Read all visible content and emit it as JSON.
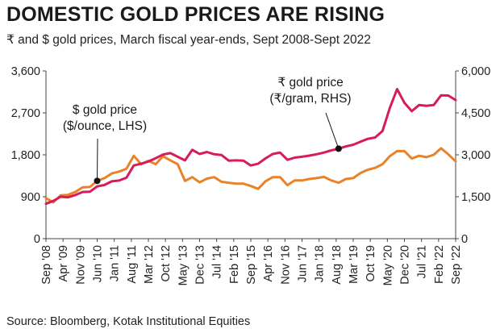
{
  "chart_data": {
    "type": "line",
    "title": "DOMESTIC GOLD PRICES ARE RISING",
    "subtitle": "₹ and $ gold prices, March fiscal year-ends, Sept 2008-Sept 2022",
    "source": "Source: Bloomberg, Kotak Institutional Equities",
    "y_left": {
      "ylim": [
        0,
        3600
      ],
      "ticks": [
        "0",
        "900",
        "1,800",
        "2,700",
        "3,600"
      ],
      "tick_values": [
        0,
        900,
        1800,
        2700,
        3600
      ]
    },
    "y_right": {
      "ylim": [
        0,
        6000
      ],
      "ticks": [
        "0",
        "1,500",
        "3,000",
        "4,500",
        "6,000"
      ],
      "tick_values": [
        0,
        1500,
        3000,
        4500,
        6000
      ]
    },
    "x_ticks": [
      "Sep '08",
      "Apr '09",
      "Nov '09",
      "Jun '10",
      "Jan '11",
      "Aug '11",
      "Mar '12",
      "Oct '12",
      "May '13",
      "Dec '13",
      "Jul '14",
      "Feb '15",
      "Sep '15",
      "Apr '16",
      "Nov '16",
      "Jun '17",
      "Jan '18",
      "Aug '18",
      "Mar '19",
      "Oct '19",
      "May '20",
      "Dec '20",
      "Jul '21",
      "Feb '22",
      "Sep '22"
    ],
    "grid": false,
    "series": [
      {
        "name": "$ gold price ($/ounce, LHS)",
        "axis": "left",
        "color": "#e8832a",
        "x": [
          "2008-09",
          "2008-12",
          "2009-03",
          "2009-06",
          "2009-09",
          "2009-12",
          "2010-03",
          "2010-06",
          "2010-09",
          "2010-12",
          "2011-03",
          "2011-06",
          "2011-09",
          "2011-12",
          "2012-03",
          "2012-06",
          "2012-09",
          "2012-12",
          "2013-03",
          "2013-06",
          "2013-09",
          "2013-12",
          "2014-03",
          "2014-06",
          "2014-09",
          "2014-12",
          "2015-03",
          "2015-06",
          "2015-09",
          "2015-12",
          "2016-03",
          "2016-06",
          "2016-09",
          "2016-12",
          "2017-03",
          "2017-06",
          "2017-09",
          "2017-12",
          "2018-03",
          "2018-06",
          "2018-09",
          "2018-12",
          "2019-03",
          "2019-06",
          "2019-09",
          "2019-12",
          "2020-03",
          "2020-06",
          "2020-09",
          "2020-12",
          "2021-03",
          "2021-06",
          "2021-09",
          "2021-12",
          "2022-03",
          "2022-06",
          "2022-09"
        ],
        "values": [
          870,
          780,
          930,
          940,
          1000,
          1100,
          1110,
          1240,
          1300,
          1400,
          1440,
          1500,
          1780,
          1600,
          1670,
          1600,
          1770,
          1680,
          1600,
          1240,
          1320,
          1210,
          1290,
          1320,
          1220,
          1200,
          1180,
          1180,
          1130,
          1070,
          1230,
          1320,
          1320,
          1150,
          1250,
          1250,
          1280,
          1300,
          1325,
          1250,
          1200,
          1280,
          1300,
          1410,
          1480,
          1520,
          1600,
          1770,
          1880,
          1880,
          1720,
          1780,
          1750,
          1800,
          1940,
          1810,
          1660
        ]
      },
      {
        "name": "₹ gold price (₹/gram, RHS)",
        "axis": "right",
        "color": "#d81b5a",
        "x": [
          "2008-09",
          "2008-12",
          "2009-03",
          "2009-06",
          "2009-09",
          "2009-12",
          "2010-03",
          "2010-06",
          "2010-09",
          "2010-12",
          "2011-03",
          "2011-06",
          "2011-09",
          "2011-12",
          "2012-03",
          "2012-06",
          "2012-09",
          "2012-12",
          "2013-03",
          "2013-06",
          "2013-09",
          "2013-12",
          "2014-03",
          "2014-06",
          "2014-09",
          "2014-12",
          "2015-03",
          "2015-06",
          "2015-09",
          "2015-12",
          "2016-03",
          "2016-06",
          "2016-09",
          "2016-12",
          "2017-03",
          "2017-06",
          "2017-09",
          "2017-12",
          "2018-03",
          "2018-06",
          "2018-09",
          "2018-12",
          "2019-03",
          "2019-06",
          "2019-09",
          "2019-12",
          "2020-03",
          "2020-06",
          "2020-09",
          "2020-12",
          "2021-03",
          "2021-06",
          "2021-09",
          "2021-12",
          "2022-03",
          "2022-06",
          "2022-09"
        ],
        "values": [
          1250,
          1350,
          1500,
          1480,
          1560,
          1670,
          1680,
          1870,
          1920,
          2050,
          2080,
          2180,
          2620,
          2680,
          2760,
          2880,
          3010,
          3060,
          2930,
          2800,
          3180,
          3030,
          3100,
          3020,
          2990,
          2790,
          2800,
          2790,
          2620,
          2680,
          2870,
          3030,
          3080,
          2820,
          2900,
          2930,
          2970,
          3020,
          3080,
          3160,
          3220,
          3300,
          3360,
          3470,
          3570,
          3620,
          3850,
          4680,
          5350,
          4860,
          4560,
          4780,
          4750,
          4780,
          5130,
          5120,
          4960
        ]
      }
    ],
    "annotations": [
      {
        "lines": [
          "$ gold price",
          "($/ounce, LHS)"
        ],
        "point_series": 0,
        "point_x": "2010-06"
      },
      {
        "lines": [
          "₹ gold price",
          "(₹/gram, RHS)"
        ],
        "point_series": 1,
        "point_x": "2018-09"
      }
    ]
  }
}
